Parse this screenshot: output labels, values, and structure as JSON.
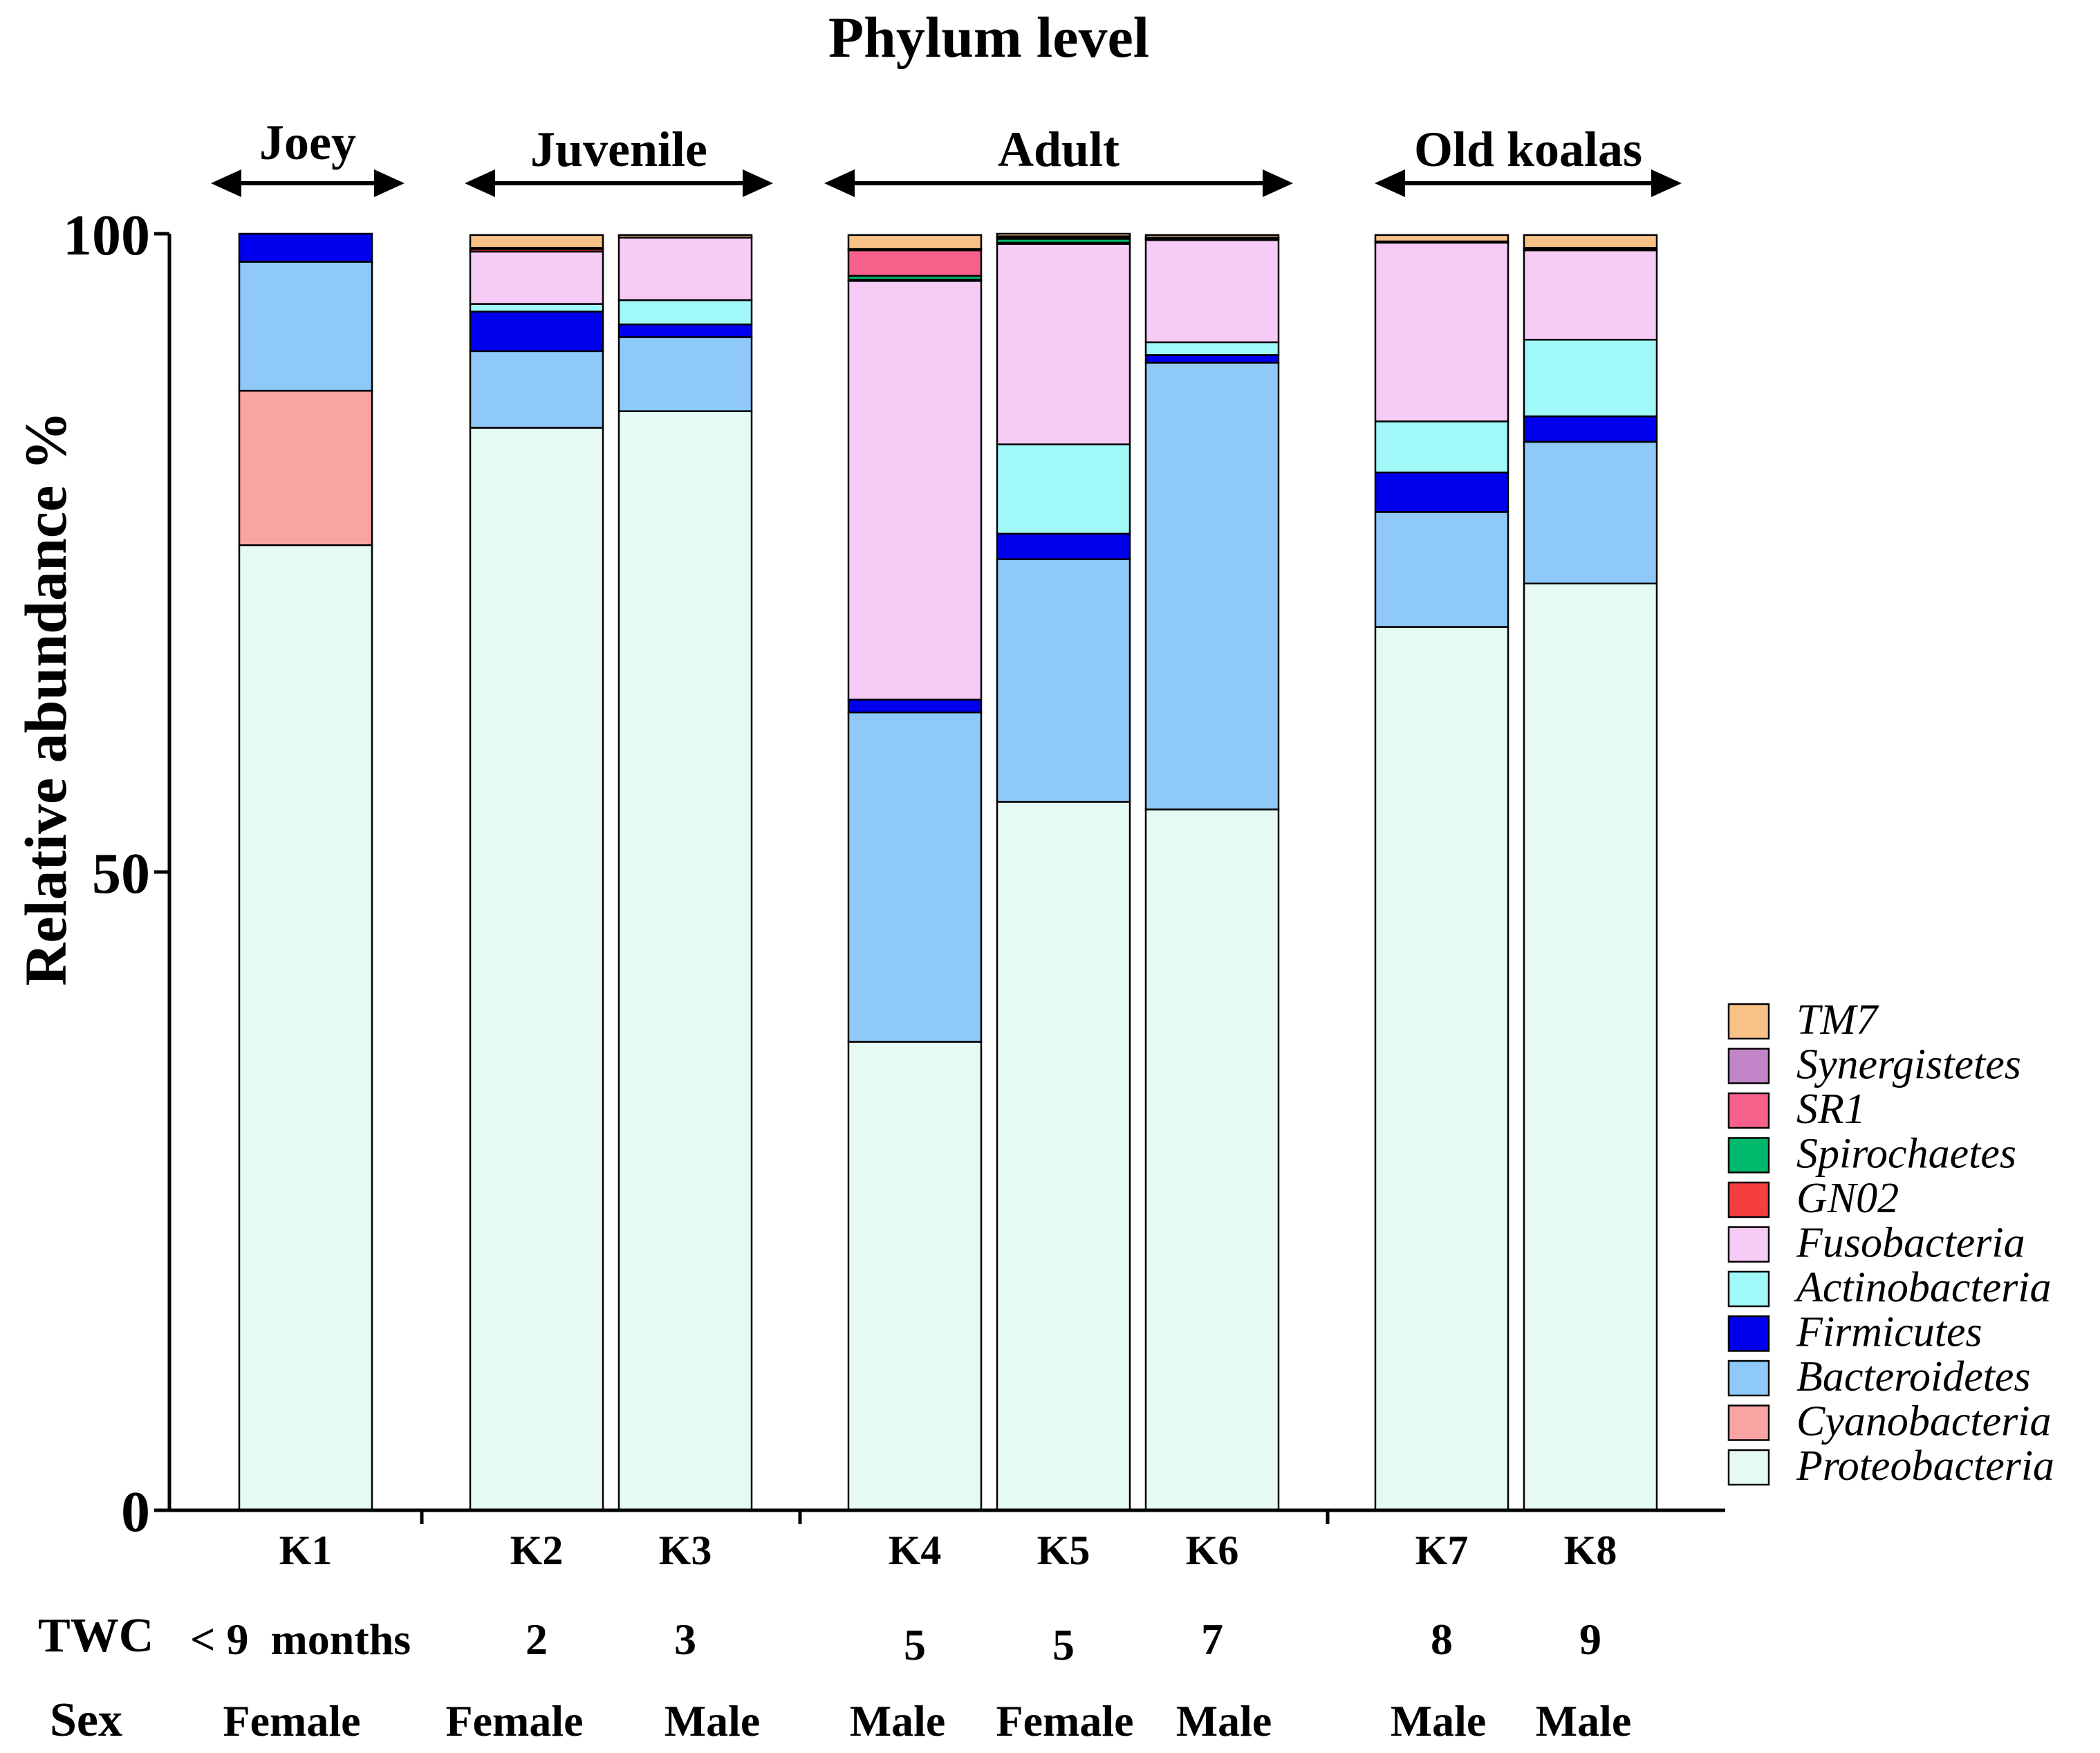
{
  "chart_data": {
    "type": "bar",
    "stacked": true,
    "title": "Phylum level",
    "ylabel": "Relative abundance %",
    "xlabel": "",
    "ylim": [
      0,
      100
    ],
    "yticks": [
      "0",
      "50",
      "100"
    ],
    "categories": [
      "K1",
      "K2",
      "K3",
      "K4",
      "K5",
      "K6",
      "K7",
      "K8"
    ],
    "groups": [
      {
        "label": "Joey",
        "members": [
          "K1"
        ]
      },
      {
        "label": "Juvenile",
        "members": [
          "K2",
          "K3"
        ]
      },
      {
        "label": "Adult",
        "members": [
          "K4",
          "K5",
          "K6"
        ]
      },
      {
        "label": "Old koalas",
        "members": [
          "K7",
          "K8"
        ]
      }
    ],
    "row_labels": {
      "twc_label": "TWC",
      "twc": [
        "< 9  months",
        "2",
        "3",
        "5",
        "5",
        "7",
        "8",
        "9"
      ],
      "sex_label": "Sex",
      "sex": [
        "Female",
        "Female",
        "Male",
        "Male",
        "Female",
        "Male",
        "Male",
        "Male"
      ]
    },
    "legend_position": "right",
    "series": [
      {
        "name": "Proteobacteria",
        "color": "#E4FAF3",
        "values": [
          75.6,
          84.8,
          86.1,
          36.7,
          55.5,
          54.9,
          69.2,
          72.6
        ]
      },
      {
        "name": "Cyanobacteria",
        "color": "#F9A3A3",
        "values": [
          12.1,
          0,
          0,
          0,
          0,
          0,
          0,
          0
        ]
      },
      {
        "name": "Bacteroidetes",
        "color": "#8EC9F9",
        "values": [
          10.1,
          6.0,
          5.8,
          25.8,
          19.0,
          35.0,
          9.0,
          11.1
        ]
      },
      {
        "name": "Firmicutes",
        "color": "#0000EE",
        "values": [
          2.2,
          3.1,
          1.0,
          1.0,
          2.0,
          0.6,
          3.1,
          2.0
        ]
      },
      {
        "name": "Actinobacteria",
        "color": "#A0F8F8",
        "values": [
          0,
          0.6,
          1.9,
          0,
          7.0,
          1.0,
          4.0,
          6.0
        ]
      },
      {
        "name": "Fusobacteria",
        "color": "#F6CCF6",
        "values": [
          0,
          4.1,
          4.9,
          32.8,
          15.7,
          8.0,
          14.0,
          7.0
        ]
      },
      {
        "name": "GN02",
        "color": "#F53E3E",
        "values": [
          0,
          0.2,
          0,
          0.1,
          0.1,
          0.1,
          0,
          0.1
        ]
      },
      {
        "name": "Spirochaetes",
        "color": "#00B86B",
        "values": [
          0,
          0,
          0,
          0.3,
          0.3,
          0,
          0,
          0
        ]
      },
      {
        "name": "SR1",
        "color": "#F6608A",
        "values": [
          0,
          0,
          0,
          2.0,
          0.1,
          0,
          0,
          0
        ]
      },
      {
        "name": "Synergistetes",
        "color": "#C184C7",
        "values": [
          0,
          0.1,
          0,
          0.1,
          0.1,
          0.1,
          0.1,
          0.1
        ]
      },
      {
        "name": "TM7",
        "color": "#F8C186",
        "values": [
          0,
          1.0,
          0.2,
          1.1,
          0.2,
          0.2,
          0.5,
          1.0
        ]
      }
    ]
  }
}
